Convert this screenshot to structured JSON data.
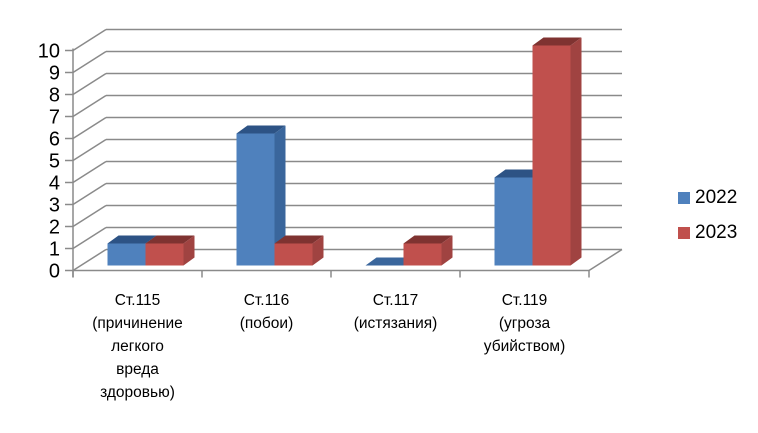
{
  "chart_data": {
    "type": "bar",
    "variant": "3d-clustered-column",
    "title": "",
    "xlabel": "",
    "ylabel": "",
    "categories": [
      "Ст.115 (причинение легкого вреда здоровью)",
      "Ст.116 (побои)",
      "Ст.117 (истязания)",
      "Ст.119 (угроза убийством)"
    ],
    "category_label_lines": [
      [
        "Ст.115",
        "(причинение",
        "легкого",
        "вреда",
        "здоровью)"
      ],
      [
        "Ст.116",
        "(побои)"
      ],
      [
        "Ст.117",
        "(истязания)"
      ],
      [
        "Ст.119",
        "(угроза",
        "убийством)"
      ]
    ],
    "series": [
      {
        "name": "2022",
        "values": [
          1,
          6,
          0,
          4
        ],
        "color": "#4f81bd",
        "color_top": "#2d5385",
        "color_side": "#3a669c"
      },
      {
        "name": "2023",
        "values": [
          1,
          1,
          1,
          10
        ],
        "color": "#c0504d",
        "color_top": "#7f3331",
        "color_side": "#a04341"
      }
    ],
    "ylim": [
      0,
      10
    ],
    "yticks": [
      0,
      1,
      2,
      3,
      4,
      5,
      6,
      7,
      8,
      9,
      10
    ],
    "grid": true,
    "legend_position": "right",
    "colors": {
      "grid": "#8a8a8a",
      "axis": "#8a8a8a",
      "text": "#000000",
      "background": "#ffffff"
    }
  }
}
